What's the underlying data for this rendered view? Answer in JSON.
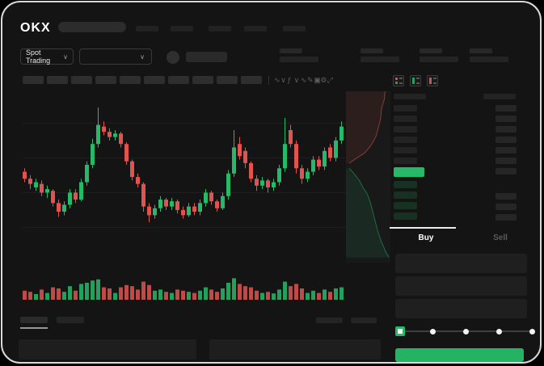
{
  "window": {
    "frame_bg": "#141414",
    "frame_border": "#d7d9da"
  },
  "colors": {
    "green": "#26b968",
    "green_button": "#24b263",
    "red": "#e0534f",
    "bid_row_tint": "rgba(38,185,104,0.18)",
    "placeholder": "#272727",
    "placeholder_dark": "#222222",
    "grid": "#1f1f1f",
    "text_dim": "#5a5a5a",
    "white": "#ffffff"
  },
  "top_nav": {
    "logo": "OKX",
    "nav_item_count": 5
  },
  "market_bar": {
    "mode_selector": {
      "label": "Spot Trading",
      "chevron": "∨"
    },
    "pair_selector": {
      "chevron": "∨"
    },
    "stat_group_count": 4
  },
  "chart_toolbar": {
    "timeframe_placeholder_count": 10,
    "icons": [
      {
        "name": "chart-type-icon",
        "glyph": "∿"
      },
      {
        "name": "chevron-down-icon",
        "glyph": "∨"
      },
      {
        "name": "indicator-icon",
        "glyph": "ƒ"
      },
      {
        "name": "chevron-down-icon",
        "glyph": "∨"
      },
      {
        "name": "compare-icon",
        "glyph": "∿"
      },
      {
        "name": "draw-icon",
        "glyph": "✎"
      },
      {
        "name": "snapshot-icon",
        "glyph": "▣"
      },
      {
        "name": "settings-icon",
        "glyph": "⚙"
      },
      {
        "name": "fullscreen-icon",
        "glyph": "⤢"
      }
    ]
  },
  "order_book": {
    "view_modes": [
      "combined",
      "bids",
      "asks"
    ],
    "ask_row_count": 6,
    "bid_row_count": 4,
    "right_top_row_count": 7,
    "right_bottom_row_count": 3,
    "price_highlight_color": "#26b968"
  },
  "trade_panel": {
    "tabs": [
      {
        "label": "Buy",
        "active": true
      },
      {
        "label": "Sell",
        "active": false
      }
    ],
    "field_count": 3,
    "slider": {
      "stops": 5,
      "active_stop": 0
    },
    "submit_color": "#24b263"
  },
  "bottom_bar": {
    "tab_count": 2,
    "action_count": 2,
    "panel_count": 2
  },
  "chart_data": {
    "type": "candlestick",
    "price_scale": [
      0,
      100
    ],
    "grid": true,
    "gridlines_at": [
      84,
      64,
      44,
      24
    ],
    "candle_format": [
      "open",
      "close",
      "low",
      "high",
      "volume"
    ],
    "candles": [
      [
        56,
        52,
        50,
        58,
        40
      ],
      [
        52,
        49,
        46,
        54,
        35
      ],
      [
        47,
        50,
        45,
        52,
        25
      ],
      [
        49,
        44,
        42,
        51,
        45
      ],
      [
        44,
        46,
        41,
        48,
        30
      ],
      [
        45,
        38,
        36,
        46,
        55
      ],
      [
        38,
        33,
        30,
        40,
        50
      ],
      [
        33,
        37,
        31,
        39,
        35
      ],
      [
        37,
        44,
        35,
        46,
        60
      ],
      [
        44,
        40,
        38,
        46,
        40
      ],
      [
        40,
        50,
        39,
        52,
        70
      ],
      [
        50,
        60,
        48,
        62,
        75
      ],
      [
        60,
        72,
        58,
        75,
        85
      ],
      [
        72,
        83,
        70,
        93,
        90
      ],
      [
        82,
        79,
        77,
        85,
        55
      ],
      [
        79,
        76,
        74,
        81,
        50
      ],
      [
        76,
        78,
        74,
        80,
        30
      ],
      [
        78,
        72,
        70,
        79,
        55
      ],
      [
        72,
        62,
        60,
        73,
        65
      ],
      [
        62,
        53,
        51,
        63,
        60
      ],
      [
        53,
        49,
        47,
        55,
        45
      ],
      [
        49,
        36,
        33,
        50,
        80
      ],
      [
        36,
        31,
        27,
        38,
        65
      ],
      [
        31,
        35,
        29,
        37,
        40
      ],
      [
        35,
        40,
        33,
        42,
        45
      ],
      [
        40,
        36,
        34,
        41,
        35
      ],
      [
        36,
        39,
        34,
        41,
        30
      ],
      [
        39,
        34,
        32,
        40,
        45
      ],
      [
        34,
        31,
        29,
        36,
        40
      ],
      [
        31,
        36,
        30,
        38,
        35
      ],
      [
        36,
        33,
        31,
        38,
        30
      ],
      [
        33,
        38,
        31,
        40,
        40
      ],
      [
        38,
        44,
        36,
        46,
        55
      ],
      [
        44,
        39,
        37,
        45,
        45
      ],
      [
        39,
        35,
        33,
        40,
        35
      ],
      [
        35,
        42,
        34,
        44,
        50
      ],
      [
        42,
        55,
        40,
        57,
        75
      ],
      [
        55,
        70,
        53,
        80,
        95
      ],
      [
        72,
        65,
        63,
        76,
        70
      ],
      [
        68,
        61,
        58,
        70,
        60
      ],
      [
        61,
        52,
        50,
        62,
        55
      ],
      [
        52,
        48,
        45,
        54,
        40
      ],
      [
        48,
        51,
        46,
        53,
        30
      ],
      [
        51,
        47,
        44,
        52,
        35
      ],
      [
        47,
        50,
        45,
        52,
        28
      ],
      [
        50,
        58,
        48,
        60,
        45
      ],
      [
        58,
        72,
        56,
        87,
        80
      ],
      [
        80,
        72,
        70,
        83,
        60
      ],
      [
        72,
        58,
        55,
        74,
        70
      ],
      [
        58,
        52,
        49,
        60,
        50
      ],
      [
        52,
        56,
        50,
        58,
        30
      ],
      [
        56,
        63,
        54,
        65,
        40
      ],
      [
        63,
        59,
        57,
        65,
        30
      ],
      [
        59,
        68,
        57,
        70,
        45
      ],
      [
        70,
        64,
        62,
        72,
        35
      ],
      [
        64,
        74,
        62,
        76,
        50
      ],
      [
        74,
        82,
        72,
        85,
        55
      ]
    ],
    "depth": {
      "ask_curve": [
        [
          0.88,
          0
        ],
        [
          0.86,
          0.05
        ],
        [
          0.8,
          0.1
        ],
        [
          0.78,
          0.16
        ],
        [
          0.72,
          0.22
        ],
        [
          0.68,
          0.26
        ],
        [
          0.6,
          0.3
        ],
        [
          0.52,
          0.33
        ],
        [
          0.42,
          0.36
        ],
        [
          0.3,
          0.38
        ],
        [
          0.18,
          0.4
        ],
        [
          0.08,
          0.42
        ]
      ],
      "bid_curve": [
        [
          0.08,
          0.45
        ],
        [
          0.18,
          0.48
        ],
        [
          0.3,
          0.52
        ],
        [
          0.38,
          0.56
        ],
        [
          0.48,
          0.6
        ],
        [
          0.55,
          0.65
        ],
        [
          0.6,
          0.7
        ],
        [
          0.66,
          0.76
        ],
        [
          0.72,
          0.82
        ],
        [
          0.8,
          0.88
        ],
        [
          0.9,
          0.94
        ],
        [
          0.97,
          0.97
        ]
      ]
    }
  }
}
